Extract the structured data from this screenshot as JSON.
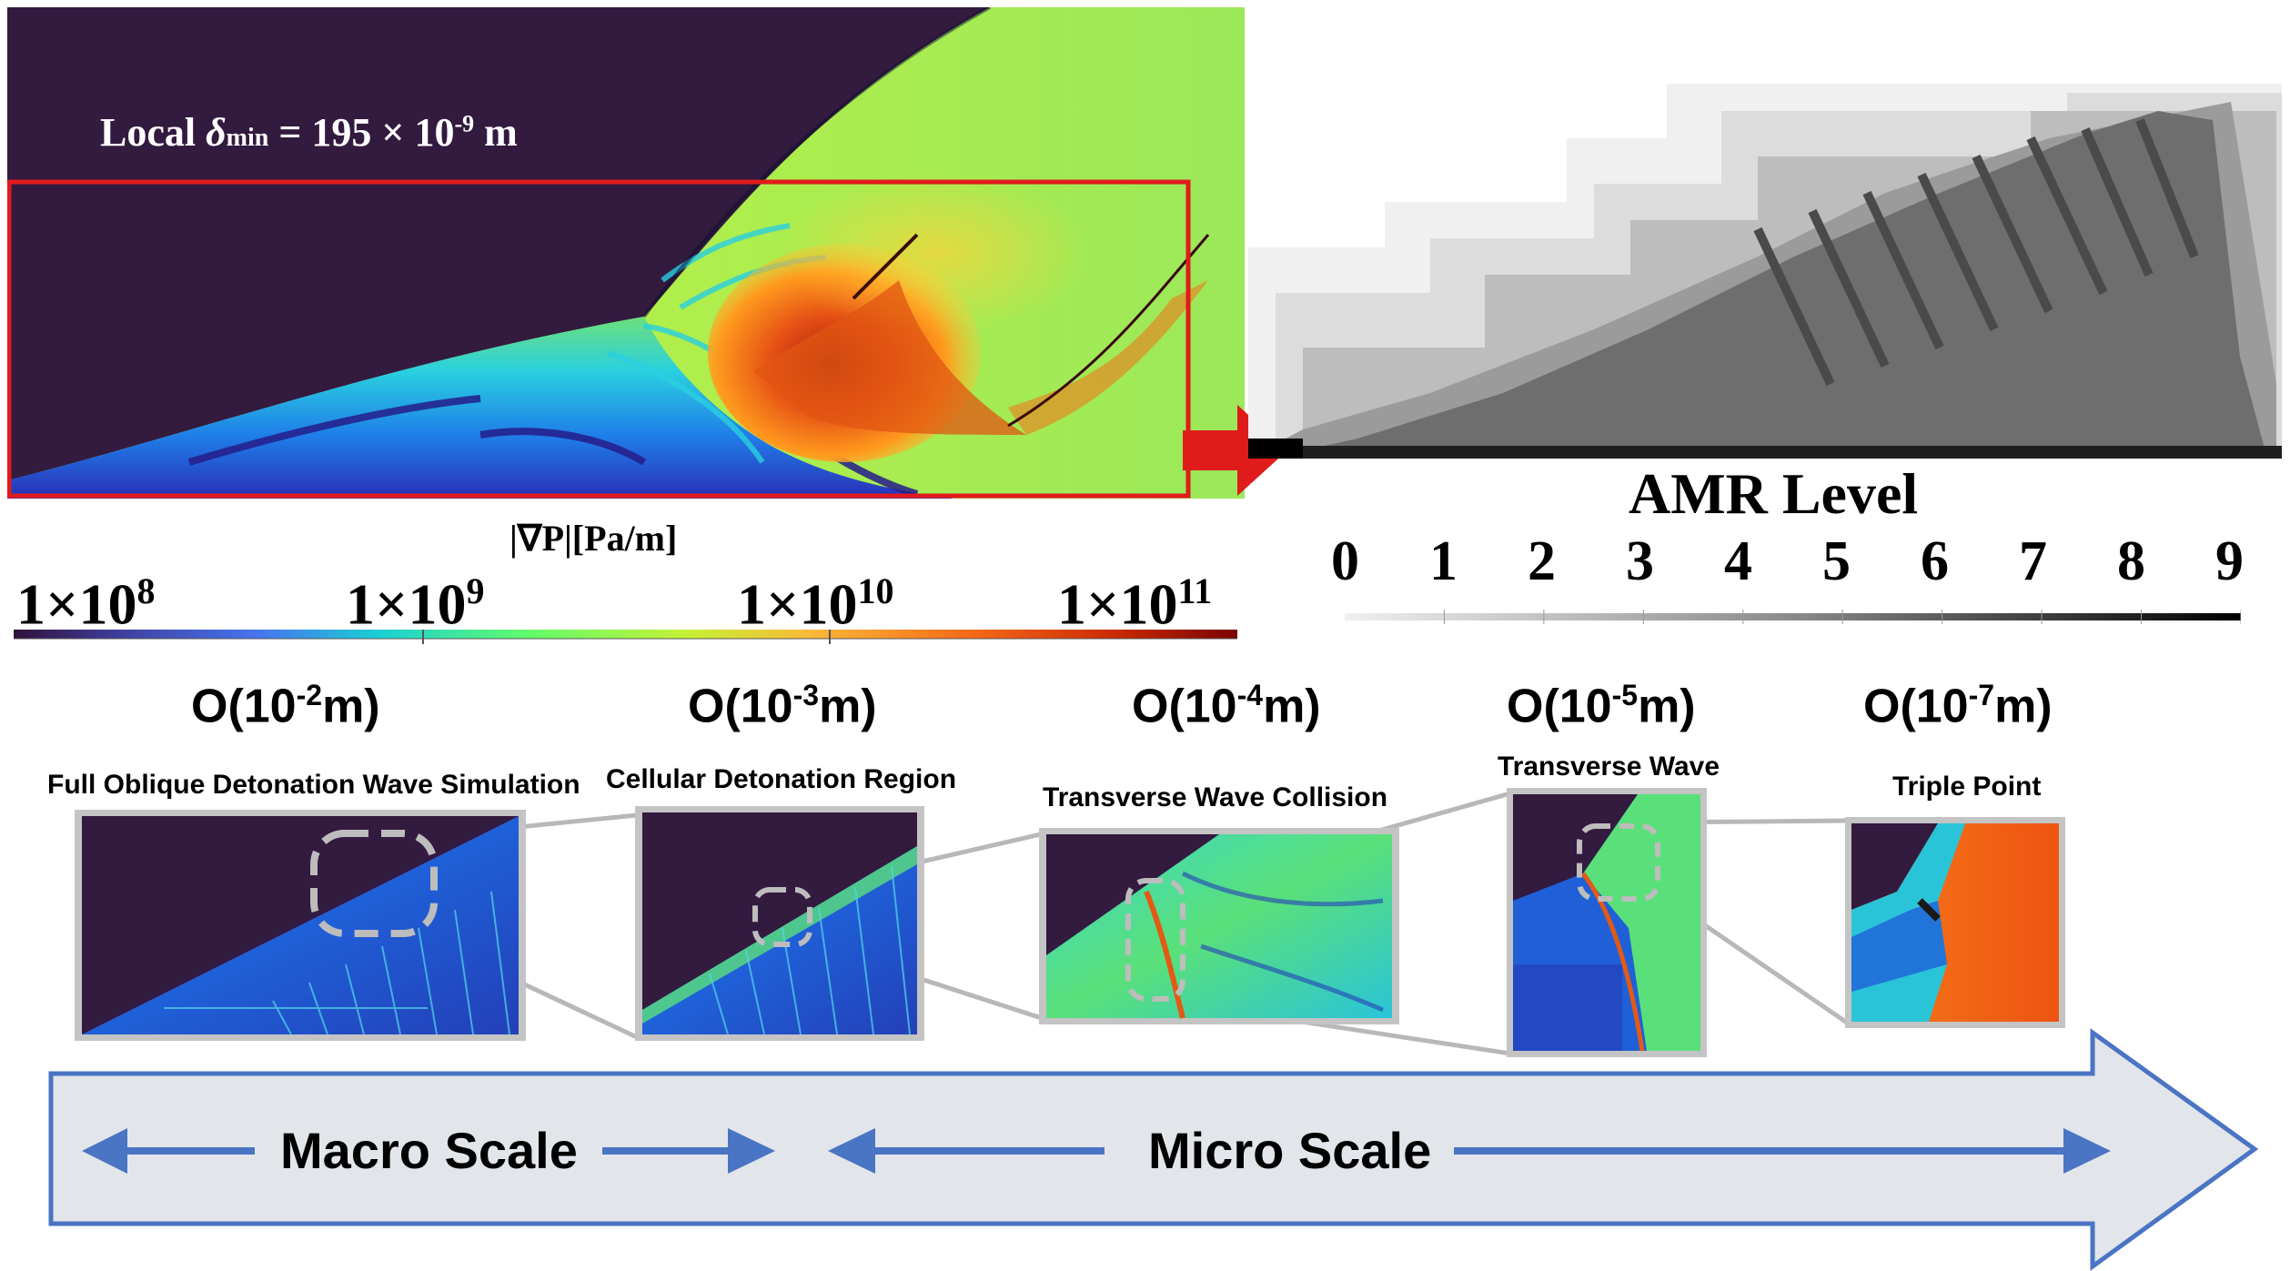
{
  "top_left": {
    "annotation": {
      "prefix": "Local",
      "delta": "δ",
      "sub": "min",
      "rest": "= 195 × 10",
      "exp": "-9",
      "unit": "m"
    },
    "colorbar": {
      "title": "|∇P|[Pa/m]",
      "ticks": [
        {
          "base": "1×10",
          "exp": "8"
        },
        {
          "base": "1×10",
          "exp": "9"
        },
        {
          "base": "1×10",
          "exp": "10"
        },
        {
          "base": "1×10",
          "exp": "11"
        }
      ]
    }
  },
  "amr": {
    "title": "AMR  Level",
    "levels": [
      "0",
      "1",
      "2",
      "3",
      "4",
      "5",
      "6",
      "7",
      "8",
      "9"
    ]
  },
  "panels": [
    {
      "scale_base": "O(10",
      "scale_exp": "-2",
      "scale_unit": "m)",
      "label": "Full Oblique Detonation Wave Simulation"
    },
    {
      "scale_base": "O(10",
      "scale_exp": "-3",
      "scale_unit": "m)",
      "label": "Cellular Detonation Region"
    },
    {
      "scale_base": "O(10",
      "scale_exp": "-4",
      "scale_unit": "m)",
      "label": "Transverse Wave  Collision"
    },
    {
      "scale_base": "O(10",
      "scale_exp": "-5",
      "scale_unit": "m)",
      "label": "Transverse Wave"
    },
    {
      "scale_base": "O(10",
      "scale_exp": "-7",
      "scale_unit": "m)",
      "label": "Triple Point"
    }
  ],
  "bottom_arrow": {
    "macro": "Macro Scale",
    "micro": "Micro Scale"
  },
  "colors": {
    "dark_purple": "#331a3f",
    "red_outline": "#e01b1b",
    "arrow_blue": "#4a74c4",
    "arrow_fill": "#e2e6ea"
  }
}
